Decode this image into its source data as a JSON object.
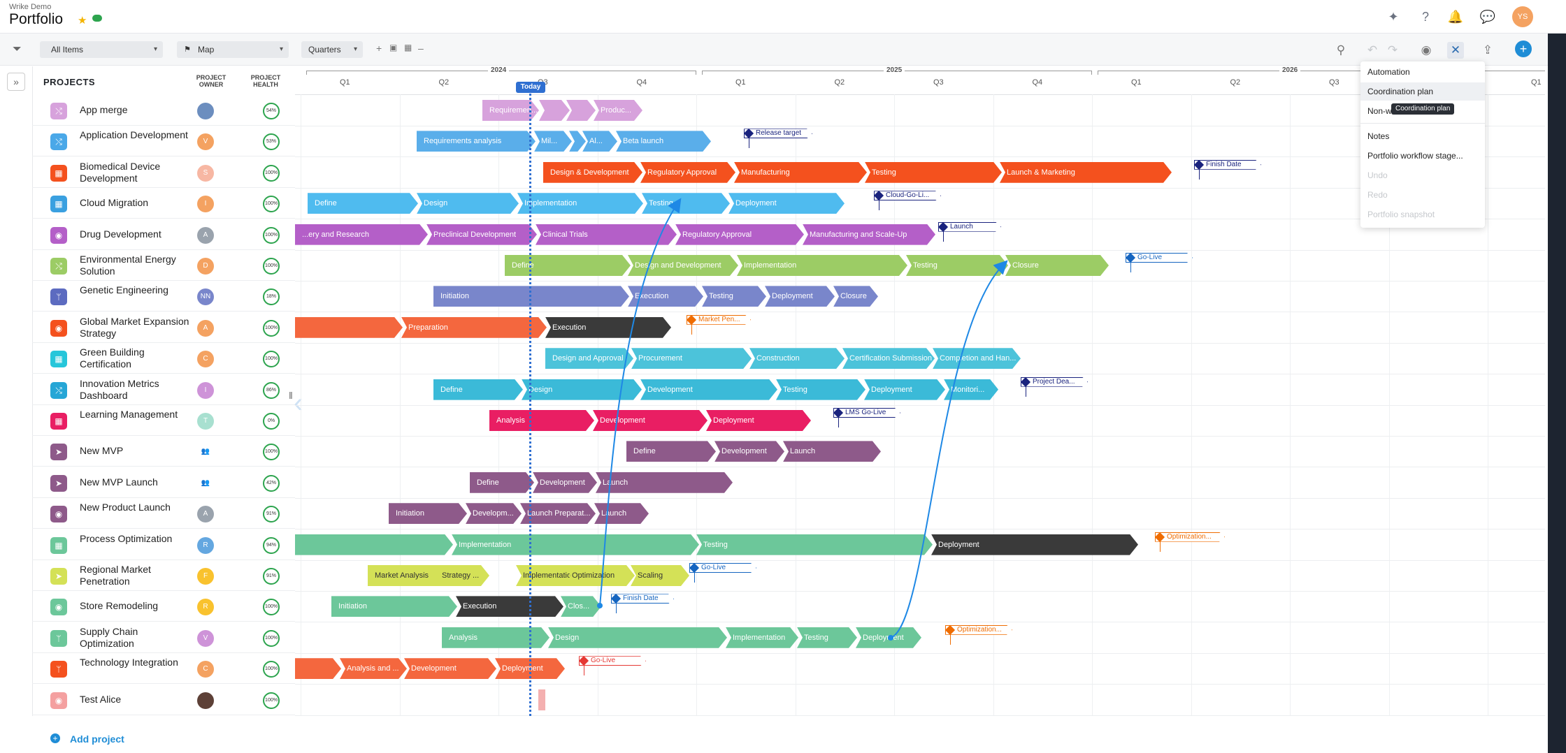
{
  "header": {
    "workspace": "Wrike Demo",
    "title": "Portfolio",
    "user_initials": "YS"
  },
  "toolbar": {
    "filter_all": "All Items",
    "view": "Map",
    "scale": "Quarters"
  },
  "columns": {
    "projects": "PROJECTS",
    "owner": "PROJECT OWNER",
    "health": "PROJECT HEALTH"
  },
  "timeline": {
    "years": [
      "2024",
      "2025",
      "2026"
    ],
    "quarters": [
      "Q1",
      "Q2",
      "Q3",
      "Q4",
      "Q1",
      "Q2",
      "Q3",
      "Q4",
      "Q1",
      "Q2",
      "Q3",
      "Q1"
    ],
    "today": "Today"
  },
  "projects": [
    {
      "name": "App merge",
      "owner": "",
      "owner_color": "#6c8ebf",
      "health": "54%",
      "icon_color": "#d7a2dc",
      "icon": "⤭"
    },
    {
      "name": "Application Development",
      "owner": "V",
      "owner_color": "#f4a261",
      "health": "53%",
      "icon_color": "#4aa8e8",
      "icon": "⤭"
    },
    {
      "name": "Biomedical Device Development",
      "owner": "S",
      "owner_color": "#f7b7a3",
      "health": "100%",
      "icon_color": "#f4511e",
      "icon": "▦"
    },
    {
      "name": "Cloud Migration",
      "owner": "I",
      "owner_color": "#f4a261",
      "health": "100%",
      "icon_color": "#3aa0e0",
      "icon": "▦"
    },
    {
      "name": "Drug Development",
      "owner": "A",
      "owner_color": "#9aa3ad",
      "health": "100%",
      "icon_color": "#b45fc8",
      "icon": "◉"
    },
    {
      "name": "Environmental Energy Solution",
      "owner": "D",
      "owner_color": "#f4a261",
      "health": "100%",
      "icon_color": "#9ccc65",
      "icon": "⤭"
    },
    {
      "name": "Genetic Engineering",
      "owner": "NN",
      "owner_color": "#7986cb",
      "health": "18%",
      "icon_color": "#5c6bc0",
      "icon": "ᛘ"
    },
    {
      "name": "Global Market Expansion Strategy",
      "owner": "A",
      "owner_color": "#f4a261",
      "health": "100%",
      "icon_color": "#f4511e",
      "icon": "◉"
    },
    {
      "name": "Green Building Certification",
      "owner": "C",
      "owner_color": "#f4a261",
      "health": "100%",
      "icon_color": "#26c6da",
      "icon": "▦"
    },
    {
      "name": "Innovation Metrics Dashboard",
      "owner": "I",
      "owner_color": "#ce93d8",
      "health": "86%",
      "icon_color": "#26a6d6",
      "icon": "⤭"
    },
    {
      "name": "Learning Management",
      "owner": "T",
      "owner_color": "#a8e0d0",
      "health": "0%",
      "icon_color": "#e91e63",
      "icon": "▦"
    },
    {
      "name": "New MVP",
      "owner": "👥",
      "owner_color": "#ffffff",
      "health": "100%",
      "icon_color": "#8e5a8a",
      "icon": "➤"
    },
    {
      "name": "New MVP Launch",
      "owner": "👥",
      "owner_color": "#ffffff",
      "health": "42%",
      "icon_color": "#8e5a8a",
      "icon": "➤"
    },
    {
      "name": "New Product Launch",
      "owner": "A",
      "owner_color": "#9aa3ad",
      "health": "91%",
      "icon_color": "#8e5a8a",
      "icon": "◉"
    },
    {
      "name": "Process Optimization",
      "owner": "R",
      "owner_color": "#64a7e0",
      "health": "94%",
      "icon_color": "#6cc79a",
      "icon": "▦"
    },
    {
      "name": "Regional Market Penetration",
      "owner": "F",
      "owner_color": "#f9c22e",
      "health": "91%",
      "icon_color": "#d4e157",
      "icon": "➤"
    },
    {
      "name": "Store Remodeling",
      "owner": "R",
      "owner_color": "#f9c22e",
      "health": "100%",
      "icon_color": "#6cc79a",
      "icon": "◉"
    },
    {
      "name": "Supply Chain Optimization",
      "owner": "V",
      "owner_color": "#ce93d8",
      "health": "100%",
      "icon_color": "#6cc79a",
      "icon": "ᛘ"
    },
    {
      "name": "Technology Integration",
      "owner": "C",
      "owner_color": "#f4a261",
      "health": "100%",
      "icon_color": "#f4511e",
      "icon": "ᛘ"
    },
    {
      "name": "Test Alice",
      "owner": "",
      "owner_color": "#5d4037",
      "health": "100%",
      "icon_color": "#f4a0a0",
      "icon": "◉"
    }
  ],
  "bars": [
    {
      "row": 0,
      "items": [
        [
          "Requiremen...",
          "#d7a2dc",
          690,
          81
        ],
        [
          "",
          "#d7a2dc",
          771,
          44
        ],
        [
          "",
          "#d7a2dc",
          810,
          42
        ],
        [
          "Produc...",
          "#d7a2dc",
          849,
          70
        ]
      ]
    },
    {
      "row": 1,
      "items": [
        [
          "Requirements analysis",
          "#5aaeea",
          596,
          170
        ],
        [
          "Mil...",
          "#5aaeea",
          764,
          54
        ],
        [
          "",
          "#5aaeea",
          814,
          24
        ],
        [
          "Al...",
          "#5aaeea",
          833,
          50
        ],
        [
          "Beta launch",
          "#5aaeea",
          881,
          136
        ]
      ]
    },
    {
      "row": 2,
      "items": [
        [
          "Design & Development",
          "#f4511e",
          777,
          142
        ],
        [
          "Regulatory Approval",
          "#f4511e",
          916,
          136
        ],
        [
          "Manufacturing",
          "#f4511e",
          1050,
          190
        ],
        [
          "Testing",
          "#f4511e",
          1237,
          196
        ],
        [
          "Launch & Marketing",
          "#f4511e",
          1430,
          246
        ]
      ]
    },
    {
      "row": 3,
      "items": [
        [
          "Define",
          "#4fbbef",
          440,
          158
        ],
        [
          "Design",
          "#4fbbef",
          596,
          146
        ],
        [
          "Implementation",
          "#4fbbef",
          740,
          180
        ],
        [
          "Testing",
          "#4fbbef",
          918,
          126
        ],
        [
          "Deployment",
          "#4fbbef",
          1042,
          166
        ]
      ]
    },
    {
      "row": 4,
      "items": [
        [
          "...ery and Research",
          "#b45fc8",
          422,
          190
        ],
        [
          "Preclinical Development",
          "#b45fc8",
          610,
          158
        ],
        [
          "Clinical Trials",
          "#b45fc8",
          766,
          202
        ],
        [
          "Regulatory Approval",
          "#b45fc8",
          966,
          184
        ],
        [
          "Manufacturing and Scale-Up",
          "#b45fc8",
          1148,
          190
        ]
      ]
    },
    {
      "row": 5,
      "items": [
        [
          "Define",
          "#9ccc65",
          722,
          180
        ],
        [
          "Design and Development",
          "#9ccc65",
          898,
          158
        ],
        [
          "Implementation",
          "#9ccc65",
          1054,
          244
        ],
        [
          "Testing",
          "#9ccc65",
          1296,
          146
        ],
        [
          "Closure",
          "#9ccc65",
          1438,
          148
        ]
      ]
    },
    {
      "row": 6,
      "items": [
        [
          "Initiation",
          "#7986cb",
          620,
          280
        ],
        [
          "Execution",
          "#7986cb",
          898,
          108
        ],
        [
          "Testing",
          "#7986cb",
          1004,
          92
        ],
        [
          "Deployment",
          "#7986cb",
          1094,
          100
        ],
        [
          "Closure",
          "#7986cb",
          1192,
          64
        ]
      ]
    },
    {
      "row": 7,
      "items": [
        [
          "",
          "#f4673e",
          422,
          154
        ],
        [
          "Preparation",
          "#f4673e",
          574,
          208
        ],
        [
          "Execution",
          "#3a3a3a",
          780,
          180
        ]
      ]
    },
    {
      "row": 8,
      "items": [
        [
          "Design and Approval",
          "#4cc3da",
          780,
          126
        ],
        [
          "Procurement",
          "#4cc3da",
          903,
          172
        ],
        [
          "Construction",
          "#4cc3da",
          1072,
          136
        ],
        [
          "Certification Submission",
          "#4cc3da",
          1205,
          132
        ],
        [
          "Completion and Han...",
          "#4cc3da",
          1334,
          126
        ]
      ]
    },
    {
      "row": 9,
      "items": [
        [
          "Define",
          "#3bbad8",
          620,
          128
        ],
        [
          "Design",
          "#3bbad8",
          746,
          172
        ],
        [
          "Development",
          "#3bbad8",
          916,
          196
        ],
        [
          "Testing",
          "#3bbad8",
          1110,
          128
        ],
        [
          "Deployment",
          "#3bbad8",
          1236,
          116
        ],
        [
          "Monitori...",
          "#3bbad8",
          1350,
          78
        ]
      ]
    },
    {
      "row": 10,
      "items": [
        [
          "Analysis",
          "#e91e63",
          700,
          150
        ],
        [
          "Development",
          "#e91e63",
          848,
          164
        ],
        [
          "Deployment",
          "#e91e63",
          1010,
          150
        ]
      ]
    },
    {
      "row": 11,
      "items": [
        [
          "Define",
          "#8e5a8a",
          896,
          128
        ],
        [
          "Development",
          "#8e5a8a",
          1022,
          100
        ],
        [
          "Launch",
          "#8e5a8a",
          1120,
          140
        ]
      ]
    },
    {
      "row": 12,
      "items": [
        [
          "Define",
          "#8e5a8a",
          672,
          92
        ],
        [
          "Development",
          "#8e5a8a",
          762,
          92
        ],
        [
          "Launch",
          "#8e5a8a",
          852,
          196
        ]
      ]
    },
    {
      "row": 13,
      "items": [
        [
          "Initiation",
          "#8e5a8a",
          556,
          112
        ],
        [
          "Developm...",
          "#8e5a8a",
          666,
          80
        ],
        [
          "Launch Preparat...",
          "#8e5a8a",
          744,
          108
        ],
        [
          "Launch",
          "#8e5a8a",
          850,
          78
        ]
      ]
    },
    {
      "row": 14,
      "items": [
        [
          "",
          "#6cc79a",
          422,
          226
        ],
        [
          "Implementation",
          "#6cc79a",
          646,
          354
        ],
        [
          "Testing",
          "#6cc79a",
          996,
          338
        ],
        [
          "Deployment",
          "#3a3a3a",
          1332,
          296
        ]
      ]
    },
    {
      "row": 15,
      "items": [
        [
          "Market Analysis",
          "#d4e157",
          526,
          124
        ],
        [
          "Strategy ...",
          "#d4e157",
          622,
          78
        ],
        [
          "Implementation",
          "#d4e157",
          738,
          140
        ],
        [
          "Optimization",
          "#d4e157",
          808,
          100
        ],
        [
          "Scaling",
          "#d4e157",
          902,
          84
        ]
      ]
    },
    {
      "row": 16,
      "items": [
        [
          "Initiation",
          "#6cc79a",
          474,
          180
        ],
        [
          "Execution",
          "#3a3a3a",
          652,
          154
        ],
        [
          "Clos...",
          "#6cc79a",
          802,
          58
        ]
      ]
    },
    {
      "row": 17,
      "items": [
        [
          "Analysis",
          "#6cc79a",
          632,
          154
        ],
        [
          "Design",
          "#6cc79a",
          784,
          256
        ],
        [
          "Implementation",
          "#6cc79a",
          1038,
          104
        ],
        [
          "Testing",
          "#6cc79a",
          1140,
          86
        ],
        [
          "Deployment",
          "#6cc79a",
          1224,
          94
        ]
      ]
    },
    {
      "row": 18,
      "items": [
        [
          "",
          "#f4673e",
          422,
          66
        ],
        [
          "Analysis and ...",
          "#f4673e",
          486,
          96
        ],
        [
          "Development",
          "#f4673e",
          578,
          132
        ],
        [
          "Deployment",
          "#f4673e",
          708,
          100
        ]
      ]
    },
    {
      "row": 19,
      "items": []
    }
  ],
  "milestones": [
    {
      "row": 1,
      "label": "Release target",
      "color": "#1a237e",
      "x": 1064,
      "w": 98
    },
    {
      "row": 2,
      "label": "Finish Date",
      "color": "#1a237e",
      "x": 1708,
      "w": 96
    },
    {
      "row": 3,
      "label": "Cloud-Go-Li...",
      "color": "#1a237e",
      "x": 1250,
      "w": 96
    },
    {
      "row": 4,
      "label": "Launch",
      "color": "#1a237e",
      "x": 1342,
      "w": 90
    },
    {
      "row": 5,
      "label": "Go-Live",
      "color": "#1565c0",
      "x": 1610,
      "w": 96
    },
    {
      "row": 7,
      "label": "Market Pen...",
      "color": "#ef6c00",
      "x": 982,
      "w": 92
    },
    {
      "row": 9,
      "label": "Project Dea...",
      "color": "#1a237e",
      "x": 1460,
      "w": 96
    },
    {
      "row": 10,
      "label": "LMS Go-Live",
      "color": "#1a237e",
      "x": 1192,
      "w": 96
    },
    {
      "row": 14,
      "label": "Optimization...",
      "color": "#ef6c00",
      "x": 1652,
      "w": 100
    },
    {
      "row": 15,
      "label": "Go-Live",
      "color": "#1565c0",
      "x": 986,
      "w": 96
    },
    {
      "row": 16,
      "label": "Finish Date",
      "color": "#1565c0",
      "x": 874,
      "w": 90
    },
    {
      "row": 17,
      "label": "Optimization...",
      "color": "#ef6c00",
      "x": 1352,
      "w": 96
    },
    {
      "row": 18,
      "label": "Go-Live",
      "color": "#e53935",
      "x": 828,
      "w": 96
    }
  ],
  "menu": {
    "items": [
      "Automation",
      "Coordination plan",
      "Non-w",
      "Notes",
      "Portfolio workflow stage...",
      "Undo",
      "Redo",
      "Portfolio snapshot"
    ],
    "tooltip": "Coordination plan"
  },
  "footer": {
    "add_project": "Add project"
  }
}
